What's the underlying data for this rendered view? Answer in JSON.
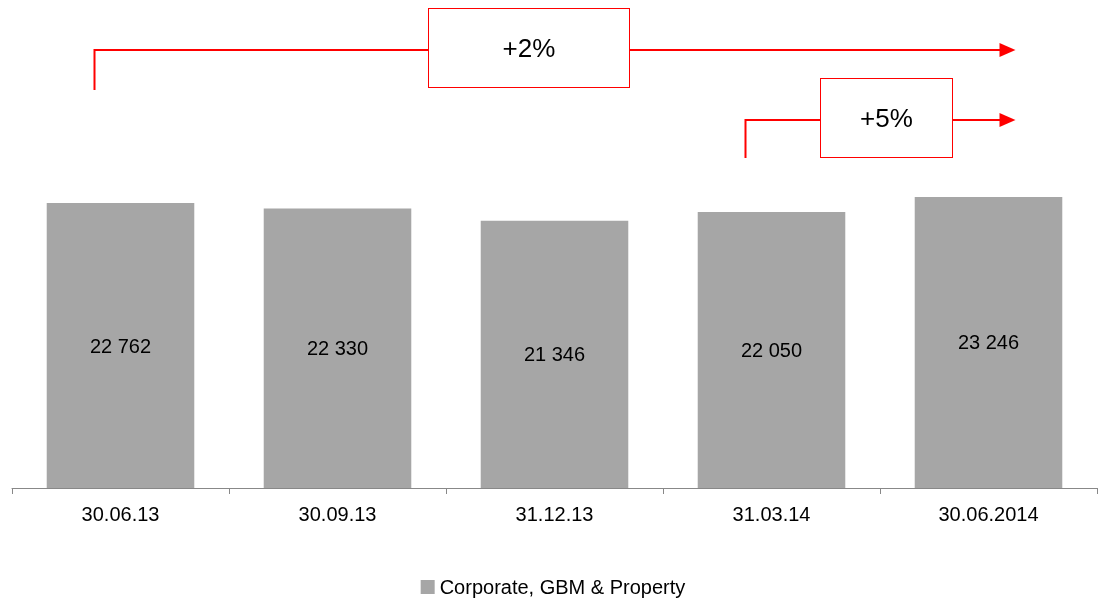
{
  "chart_data": {
    "type": "bar",
    "categories": [
      "30.06.13",
      "30.09.13",
      "31.12.13",
      "31.03.14",
      "30.06.2014"
    ],
    "series": [
      {
        "name": "Corporate, GBM & Property",
        "color": "#a6a6a6",
        "values": [
          22762,
          22330,
          21346,
          22050,
          23246
        ],
        "value_labels": [
          "22 762",
          "22 330",
          "21 346",
          "22 050",
          "23 246"
        ]
      }
    ],
    "tick_labels": "x",
    "legend": "bottom",
    "annotations": [
      "+2%",
      "+5%"
    ]
  }
}
